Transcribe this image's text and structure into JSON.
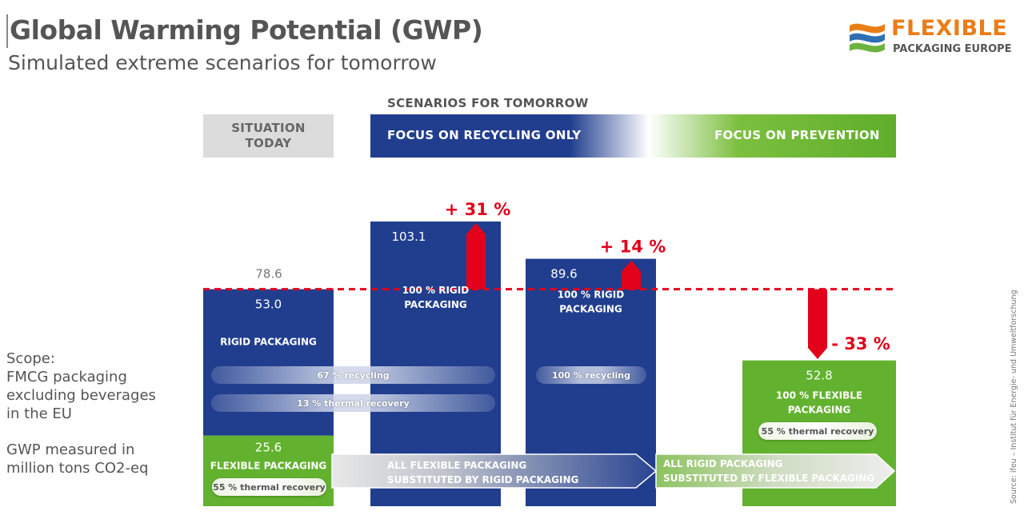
{
  "header": {
    "title": "Global Warming Potential (GWP)",
    "subtitle": "Simulated extreme scenarios for tomorrow"
  },
  "logo": {
    "line1": "FLEXIBLE",
    "line2": "PACKAGING EUROPE"
  },
  "scenarios_header": "SCENARIOS FOR TOMORROW",
  "situation_today": "SITUATION TODAY",
  "focus_recycling": "FOCUS ON RECYCLING ONLY",
  "focus_prevention": "FOCUS ON PREVENTION",
  "scope": {
    "lines": [
      "Scope:",
      "FMCG packaging",
      "excluding beverages",
      "in the EU"
    ]
  },
  "gwp_note": {
    "lines": [
      "GWP measured in",
      "million tons CO2-eq"
    ]
  },
  "source": "Source: ifeu – Institut für Energie- und Umweltforschung",
  "chart_data": {
    "type": "bar",
    "ymax": 103.1,
    "baseline": 78.6,
    "colors": {
      "rigid": "#213e8e",
      "flexible": "#62b22f",
      "change": "#e2001a"
    },
    "bars": [
      {
        "id": "today",
        "total": 78.6,
        "segments": [
          {
            "kind": "flexible",
            "value": 25.6,
            "label": "FLEXIBLE PACKAGING"
          },
          {
            "kind": "rigid",
            "value": 53.0,
            "label": "RIGID PACKAGING"
          }
        ],
        "pills": [
          "67 % recycling",
          "13 % thermal recovery",
          "55 % thermal recovery"
        ]
      },
      {
        "id": "recycling-a",
        "total": 103.1,
        "segments": [
          {
            "kind": "rigid",
            "value": 103.1,
            "label": "100 % RIGID PACKAGING"
          }
        ],
        "change": "+ 31 %"
      },
      {
        "id": "recycling-b",
        "total": 89.6,
        "segments": [
          {
            "kind": "rigid",
            "value": 89.6,
            "label": "100 % RIGID PACKAGING"
          }
        ],
        "pills": [
          "100 % recycling"
        ],
        "change": "+ 14 %"
      },
      {
        "id": "prevention",
        "total": 52.8,
        "segments": [
          {
            "kind": "flexible",
            "value": 52.8,
            "label": "100 % FLEXIBLE PACKAGING"
          }
        ],
        "pills": [
          "55 % thermal recovery"
        ],
        "change": "- 33 %"
      }
    ],
    "arrows": [
      {
        "label": "ALL FLEXIBLE PACKAGING SUBSTITUTED BY RIGID PACKAGING"
      },
      {
        "label": "ALL RIGID PACKAGING SUBSTITUTED BY FLEXIBLE PACKAGING"
      }
    ]
  }
}
